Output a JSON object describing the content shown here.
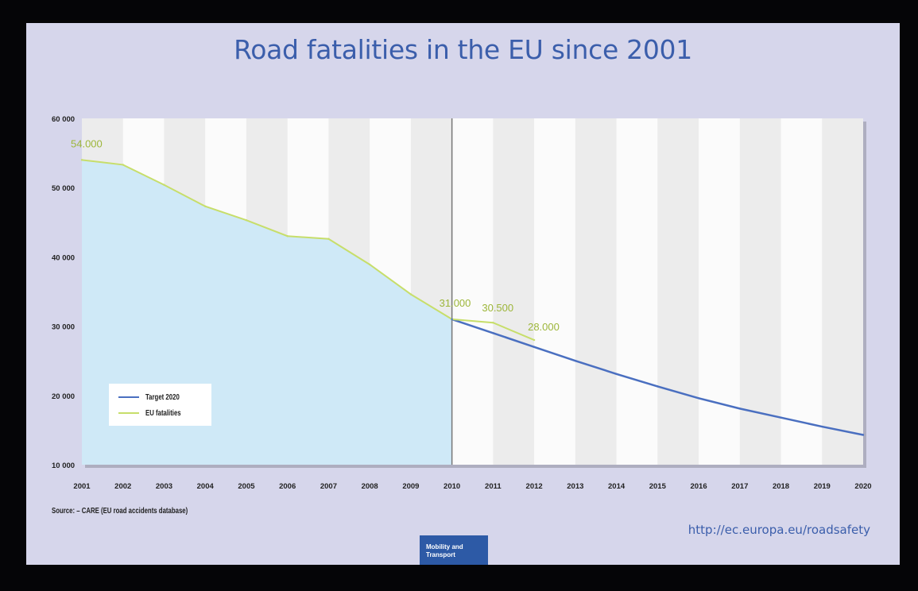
{
  "chart_data": {
    "type": "line",
    "title": "Road fatalities in the EU since 2001",
    "x": [
      2001,
      2002,
      2003,
      2004,
      2005,
      2006,
      2007,
      2008,
      2009,
      2010,
      2011,
      2012,
      2013,
      2014,
      2015,
      2016,
      2017,
      2018,
      2019,
      2020
    ],
    "x_tick_labels": [
      "2001",
      "2002",
      "2003",
      "2004",
      "2005",
      "2006",
      "2007",
      "2008",
      "2009",
      "2010",
      "2011",
      "2012",
      "2013",
      "2014",
      "2015",
      "2016",
      "2017",
      "2018",
      "2019",
      "2020"
    ],
    "y_tick_labels": [
      "10 000",
      "20 000",
      "30 000",
      "40 000",
      "50 000",
      "60 000"
    ],
    "y_ticks": [
      10000,
      20000,
      30000,
      40000,
      50000,
      60000
    ],
    "ylim": [
      10000,
      60000
    ],
    "grid": "alternating vertical bands",
    "legend_position": "bottom-left",
    "series": [
      {
        "name": "EU fatalities",
        "color": "#c7de6a",
        "area_fill": "#cfe9f7",
        "x": [
          2001,
          2002,
          2003,
          2004,
          2005,
          2006,
          2007,
          2008,
          2009,
          2010,
          2011,
          2012
        ],
        "values": [
          54000,
          53300,
          50400,
          47300,
          45300,
          43000,
          42600,
          38900,
          34600,
          31000,
          30500,
          28000
        ]
      },
      {
        "name": "Target 2020",
        "color": "#4a6fc0",
        "x": [
          2010,
          2011,
          2012,
          2013,
          2014,
          2015,
          2016,
          2017,
          2018,
          2019,
          2020
        ],
        "values": [
          31000,
          29000,
          27000,
          25000,
          23100,
          21300,
          19600,
          18100,
          16800,
          15500,
          14300
        ]
      }
    ],
    "annotations": [
      {
        "text": "54.000",
        "x": 2001,
        "y": 54000
      },
      {
        "text": "31.000",
        "x": 2010,
        "y": 31000
      },
      {
        "text": "30.500",
        "x": 2011,
        "y": 30500
      },
      {
        "text": "28.000",
        "x": 2012,
        "y": 28000
      }
    ],
    "divider_year": 2010
  },
  "footer": {
    "source": "Source: – CARE (EU road accidents database)",
    "url": "http://ec.europa.eu/roadsafety",
    "brand_line1": "Mobility and",
    "brand_line2": "Transport"
  }
}
